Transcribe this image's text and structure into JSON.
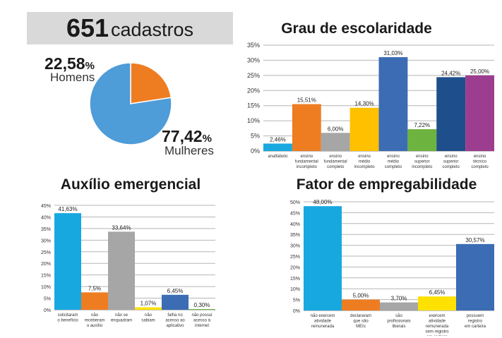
{
  "header": {
    "count": "651",
    "label": "cadastros"
  },
  "pie_labels": {
    "homens_value": "22,58",
    "homens_unit": "%",
    "homens_label": "Homens",
    "mulheres_value": "77,42",
    "mulheres_unit": "%",
    "mulheres_label": "Mulheres"
  },
  "chart_data": [
    {
      "id": "genero",
      "type": "pie",
      "title": "",
      "slices": [
        {
          "name": "Homens",
          "value": 22.58,
          "color": "#ee7d22"
        },
        {
          "name": "Mulheres",
          "value": 77.42,
          "color": "#4e9cd8"
        }
      ]
    },
    {
      "id": "escolaridade",
      "type": "bar",
      "title": "Grau de escolaridade",
      "categories": [
        [
          "analfabeto"
        ],
        [
          "ensino",
          "fundamental",
          "incompleto"
        ],
        [
          "ensino",
          "fundamental",
          "completo"
        ],
        [
          "ensino",
          "médio",
          "incompleto"
        ],
        [
          "ensino",
          "médio",
          "completo"
        ],
        [
          "ensino",
          "superior",
          "incompleto"
        ],
        [
          "ensino",
          "superior",
          "completo"
        ],
        [
          "ensino",
          "técnico",
          "completo"
        ]
      ],
      "values": [
        2.46,
        15.51,
        6.0,
        14.3,
        31.03,
        7.22,
        24.42,
        25.0
      ],
      "value_labels": [
        "2,46%",
        "15,51%",
        "6,00%",
        "14,30%",
        "31,03%",
        "7,22%",
        "24,42%",
        "25,00%"
      ],
      "colors": [
        "#18a8e0",
        "#ee7d22",
        "#a6a6a6",
        "#ffc000",
        "#3c6cb4",
        "#6db33f",
        "#1f4e8c",
        "#9c3d8f"
      ],
      "yticks": [
        "0%",
        "5%",
        "10%",
        "15%",
        "20%",
        "25%",
        "30%",
        "35%"
      ],
      "ylim": [
        0,
        35
      ],
      "grid": true
    },
    {
      "id": "auxilio",
      "type": "bar",
      "title": "Auxílio emergencial",
      "categories": [
        [
          "solicitaram",
          "o benefício"
        ],
        [
          "não",
          "receberam",
          "o auxílio"
        ],
        [
          "não se",
          "enquadram"
        ],
        [
          "não",
          "sabiam"
        ],
        [
          "falha no",
          "acesso ao",
          "aplicativo"
        ],
        [
          "não possui",
          "acesso à",
          "internet"
        ]
      ],
      "values": [
        41.63,
        7.5,
        33.64,
        1.07,
        6.45,
        0.3
      ],
      "value_labels": [
        "41,63%",
        "7,5%",
        "33,64%",
        "1,07%",
        "6,45%",
        "0,30%"
      ],
      "colors": [
        "#18a8e0",
        "#ee7d22",
        "#a6a6a6",
        "#ffe100",
        "#3c6cb4",
        "#6db33f"
      ],
      "yticks": [
        "0%",
        "5%",
        "10%",
        "15%",
        "20%",
        "25%",
        "30%",
        "35%",
        "40%",
        "45%"
      ],
      "ylim": [
        0,
        45
      ],
      "grid": true
    },
    {
      "id": "empregabilidade",
      "type": "bar",
      "title": "Fator de empregabilidade",
      "categories": [
        [
          "não exercem",
          "atividade",
          "remunerada"
        ],
        [
          "declararam",
          "que são",
          "MEIs"
        ],
        [
          "são",
          "profissionais",
          "liberais"
        ],
        [
          "exercem",
          "atividade",
          "remunerada",
          "sem registro",
          "em carteira"
        ],
        [
          "possuem",
          "registro",
          "em carteira"
        ]
      ],
      "values": [
        48.0,
        5.0,
        3.7,
        6.45,
        30.57
      ],
      "value_labels": [
        "48,00%",
        "5,00%",
        "3,70%",
        "6,45%",
        "30,57%"
      ],
      "colors": [
        "#18a8e0",
        "#ee7d22",
        "#a6a6a6",
        "#ffe100",
        "#3c6cb4"
      ],
      "yticks": [
        "0%",
        "5%",
        "10%",
        "15%",
        "20%",
        "25%",
        "30%",
        "35%",
        "40%",
        "45%",
        "50%"
      ],
      "ylim": [
        0,
        50
      ],
      "grid": true
    }
  ]
}
